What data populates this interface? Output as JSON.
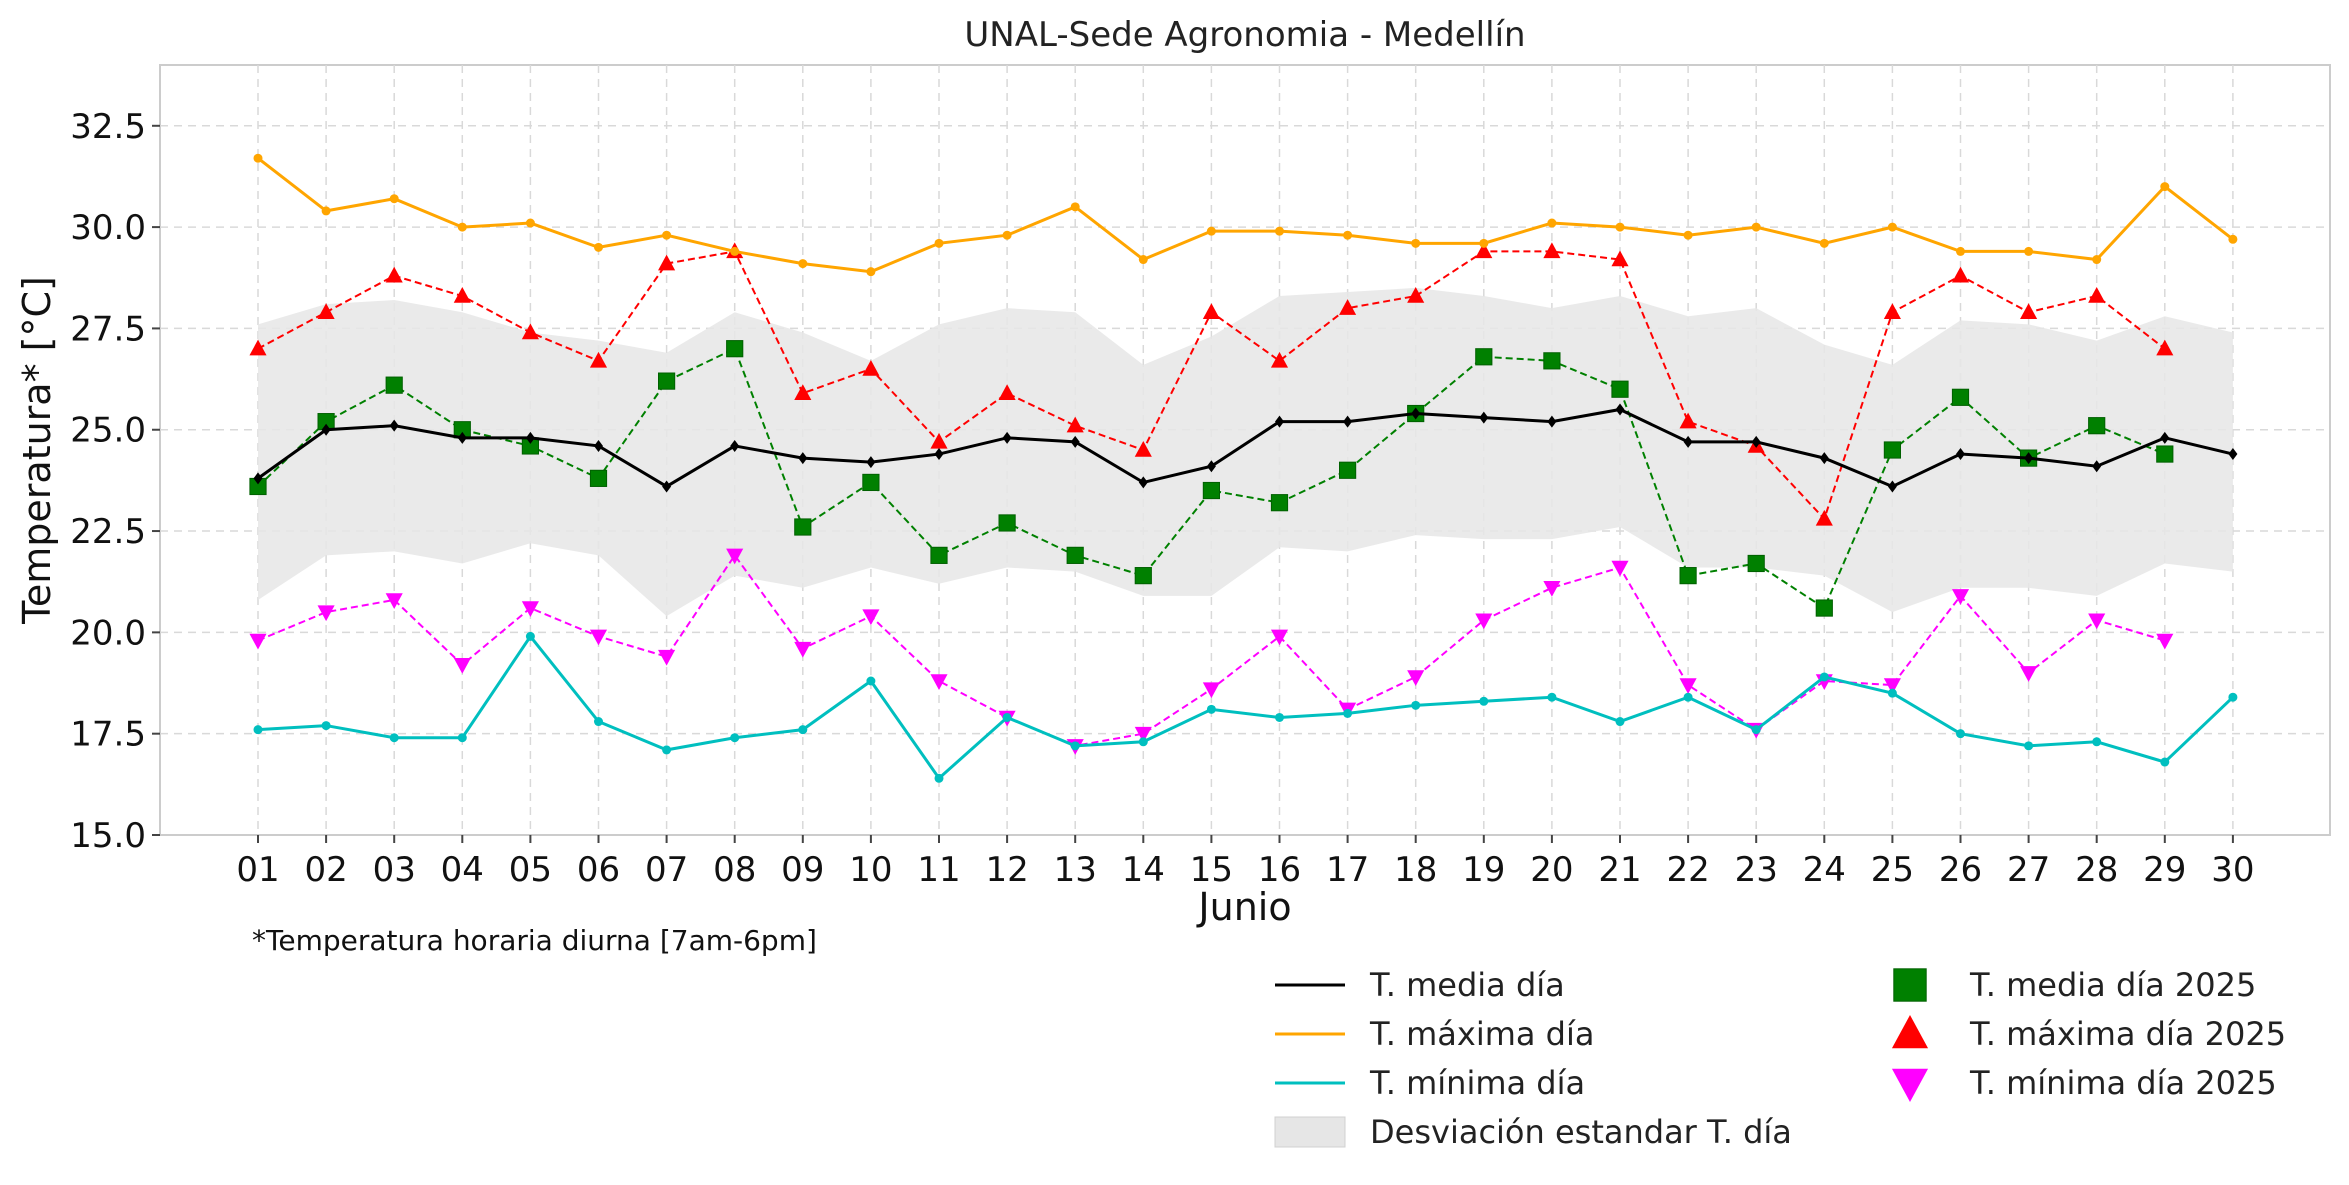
{
  "chart_data": {
    "type": "line",
    "title": "UNAL-Sede Agronomia - Medellín",
    "xlabel": "Junio",
    "ylabel": "Temperatura* [°C]",
    "footnote": "*Temperatura horaria diurna [7am-6pm]",
    "ylim": [
      15.0,
      34.0
    ],
    "yticks": [
      "15.0",
      "17.5",
      "20.0",
      "22.5",
      "25.0",
      "27.5",
      "30.0",
      "32.5"
    ],
    "ytick_values": [
      15.0,
      17.5,
      20.0,
      22.5,
      25.0,
      27.5,
      30.0,
      32.5
    ],
    "categories": [
      "01",
      "02",
      "03",
      "04",
      "05",
      "06",
      "07",
      "08",
      "09",
      "10",
      "11",
      "12",
      "13",
      "14",
      "15",
      "16",
      "17",
      "18",
      "19",
      "20",
      "21",
      "22",
      "23",
      "24",
      "25",
      "26",
      "27",
      "28",
      "29",
      "30"
    ],
    "grid": true,
    "legend_placement": "bottom-right, below plot",
    "std_band": {
      "name": "Desviación estandar T. día",
      "color": "#e6e6e6",
      "upper": [
        27.6,
        28.1,
        28.2,
        27.9,
        27.4,
        27.2,
        26.9,
        27.9,
        27.4,
        26.7,
        27.6,
        28.0,
        27.9,
        26.6,
        27.3,
        28.3,
        28.4,
        28.5,
        28.3,
        28.0,
        28.3,
        27.8,
        28.0,
        27.1,
        26.6,
        27.7,
        27.6,
        27.2,
        27.8,
        27.4
      ],
      "lower": [
        20.8,
        21.9,
        22.0,
        21.7,
        22.2,
        21.9,
        20.4,
        21.4,
        21.1,
        21.6,
        21.2,
        21.6,
        21.5,
        20.9,
        20.9,
        22.1,
        22.0,
        22.4,
        22.3,
        22.3,
        22.6,
        21.6,
        21.6,
        21.4,
        20.5,
        21.1,
        21.1,
        20.9,
        21.7,
        21.5
      ]
    },
    "series": [
      {
        "name": "T. media día",
        "color": "#000000",
        "style": "solid",
        "marker": "diamond",
        "values": [
          23.8,
          25.0,
          25.1,
          24.8,
          24.8,
          24.6,
          23.6,
          24.6,
          24.3,
          24.2,
          24.4,
          24.8,
          24.7,
          23.7,
          24.1,
          25.2,
          25.2,
          25.4,
          25.3,
          25.2,
          25.5,
          24.7,
          24.7,
          24.3,
          23.6,
          24.4,
          24.3,
          24.1,
          24.8,
          24.4
        ]
      },
      {
        "name": "T. máxima día",
        "color": "#ffa500",
        "style": "solid",
        "marker": "circle",
        "values": [
          31.7,
          30.4,
          30.7,
          30.0,
          30.1,
          29.5,
          29.8,
          29.4,
          29.1,
          28.9,
          29.6,
          29.8,
          30.5,
          29.2,
          29.9,
          29.9,
          29.8,
          29.6,
          29.6,
          30.1,
          30.0,
          29.8,
          30.0,
          29.6,
          30.0,
          29.4,
          29.4,
          29.2,
          31.0,
          29.7
        ]
      },
      {
        "name": "T. mínima día",
        "color": "#00bfbf",
        "style": "solid",
        "marker": "circle",
        "values": [
          17.6,
          17.7,
          17.4,
          17.4,
          19.9,
          17.8,
          17.1,
          17.4,
          17.6,
          18.8,
          16.4,
          17.9,
          17.2,
          17.3,
          18.1,
          17.9,
          18.0,
          18.2,
          18.3,
          18.4,
          17.8,
          18.4,
          17.6,
          18.9,
          18.5,
          17.5,
          17.2,
          17.3,
          16.8,
          18.4
        ]
      },
      {
        "name": "T. media día 2025",
        "color": "#008000",
        "style": "dashed",
        "marker": "square",
        "values": [
          23.6,
          25.2,
          26.1,
          25.0,
          24.6,
          23.8,
          26.2,
          27.0,
          22.6,
          23.7,
          21.9,
          22.7,
          21.9,
          21.4,
          23.5,
          23.2,
          24.0,
          25.4,
          26.8,
          26.7,
          26.0,
          21.4,
          21.7,
          20.6,
          24.5,
          25.8,
          24.3,
          25.1,
          24.4,
          null
        ]
      },
      {
        "name": "T. máxima día 2025",
        "color": "#ff0000",
        "style": "dashed",
        "marker": "triangle-up",
        "values": [
          27.0,
          27.9,
          28.8,
          28.3,
          27.4,
          26.7,
          29.1,
          29.4,
          25.9,
          26.5,
          24.7,
          25.9,
          25.1,
          24.5,
          27.9,
          26.7,
          28.0,
          28.3,
          29.4,
          29.4,
          29.2,
          25.2,
          24.6,
          22.8,
          27.9,
          28.8,
          27.9,
          28.3,
          27.0,
          null
        ]
      },
      {
        "name": "T. mínima día 2025",
        "color": "#ff00ff",
        "style": "dashed",
        "marker": "triangle-down",
        "values": [
          19.8,
          20.5,
          20.8,
          19.2,
          20.6,
          19.9,
          19.4,
          21.9,
          19.6,
          20.4,
          18.8,
          17.9,
          17.2,
          17.5,
          18.6,
          19.9,
          18.1,
          18.9,
          20.3,
          21.1,
          21.6,
          18.7,
          17.6,
          18.8,
          18.7,
          20.9,
          19.0,
          20.3,
          19.8,
          null
        ]
      }
    ]
  }
}
